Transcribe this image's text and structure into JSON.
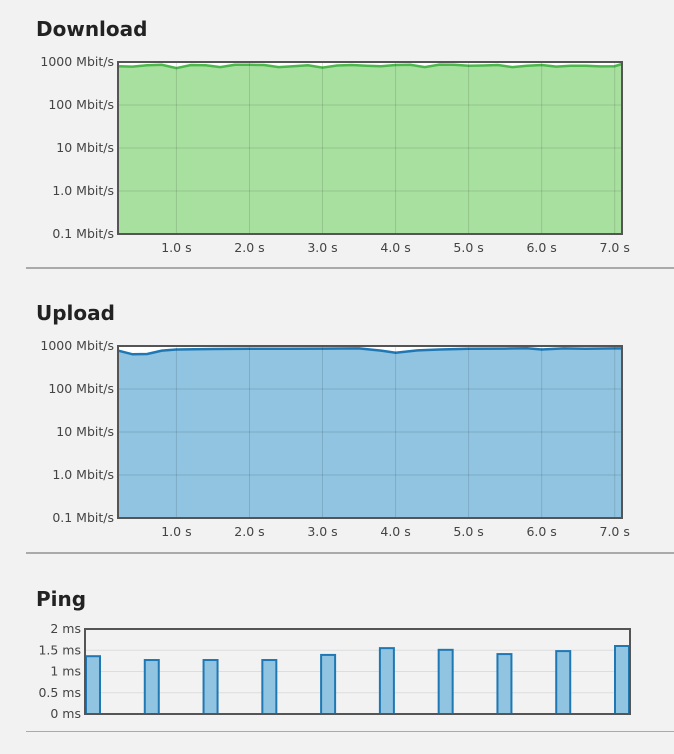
{
  "chart_data": [
    {
      "type": "area",
      "title": "Download",
      "yscale": "log",
      "ylim": [
        0.1,
        1000
      ],
      "xlim": [
        0.2,
        7.1
      ],
      "yticks": [
        "0.1 Mbit/s",
        "1.0 Mbit/s",
        "10 Mbit/s",
        "100 Mbit/s",
        "1000 Mbit/s"
      ],
      "xticks": [
        "1.0 s",
        "2.0 s",
        "3.0 s",
        "4.0 s",
        "5.0 s",
        "6.0 s",
        "7.0 s"
      ],
      "color": "#4cb84c",
      "fill": "#a8e0a0",
      "x": [
        0.2,
        0.4,
        0.6,
        0.8,
        1.0,
        1.2,
        1.4,
        1.6,
        1.8,
        2.0,
        2.2,
        2.4,
        2.6,
        2.8,
        3.0,
        3.2,
        3.4,
        3.6,
        3.8,
        4.0,
        4.2,
        4.4,
        4.6,
        4.8,
        5.0,
        5.2,
        5.4,
        5.6,
        5.8,
        6.0,
        6.2,
        6.4,
        6.6,
        6.8,
        7.0,
        7.1
      ],
      "y": [
        800,
        780,
        840,
        860,
        720,
        850,
        840,
        760,
        860,
        860,
        850,
        760,
        800,
        840,
        740,
        830,
        850,
        820,
        800,
        850,
        860,
        760,
        870,
        860,
        820,
        830,
        850,
        760,
        820,
        850,
        780,
        820,
        820,
        790,
        800,
        900
      ]
    },
    {
      "type": "area",
      "title": "Upload",
      "yscale": "log",
      "ylim": [
        0.1,
        1000
      ],
      "xlim": [
        0.2,
        7.1
      ],
      "yticks": [
        "0.1 Mbit/s",
        "1.0 Mbit/s",
        "10 Mbit/s",
        "100 Mbit/s",
        "1000 Mbit/s"
      ],
      "xticks": [
        "1.0 s",
        "2.0 s",
        "3.0 s",
        "4.0 s",
        "5.0 s",
        "6.0 s",
        "7.0 s"
      ],
      "color": "#1f78b4",
      "fill": "#90c4e0",
      "x": [
        0.2,
        0.4,
        0.6,
        0.8,
        1.0,
        1.5,
        2.0,
        2.5,
        3.0,
        3.5,
        3.8,
        4.0,
        4.3,
        4.6,
        5.0,
        5.5,
        5.8,
        6.0,
        6.3,
        6.6,
        7.0,
        7.1
      ],
      "y": [
        780,
        640,
        650,
        780,
        830,
        850,
        860,
        860,
        870,
        880,
        780,
        700,
        790,
        830,
        860,
        870,
        890,
        830,
        880,
        860,
        880,
        880
      ]
    },
    {
      "type": "bar",
      "title": "Ping",
      "ylim": [
        0,
        2
      ],
      "yticks": [
        "0 ms",
        "0.5 ms",
        "1 ms",
        "1.5 ms",
        "2 ms"
      ],
      "values": [
        1.36,
        1.27,
        1.27,
        1.27,
        1.39,
        1.55,
        1.51,
        1.41,
        1.48,
        1.6
      ],
      "color": "#1f78b4",
      "fill": "#90c4e0"
    }
  ]
}
